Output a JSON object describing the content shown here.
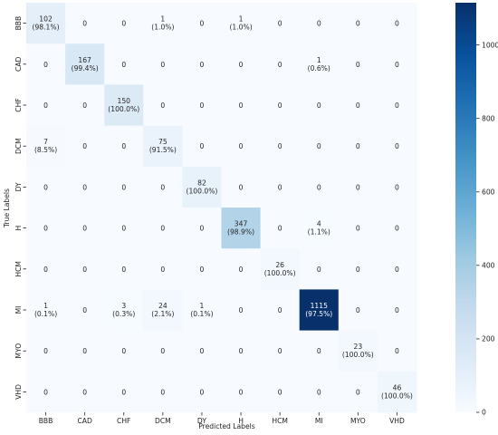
{
  "chart_data": {
    "type": "heatmap",
    "xlabel": "Predicted Labels",
    "ylabel": "True Labels",
    "x_categories": [
      "BBB",
      "CAD",
      "CHF",
      "DCM",
      "DY",
      "H",
      "HCM",
      "MI",
      "MYO",
      "VHD"
    ],
    "y_categories": [
      "BBB",
      "CAD",
      "CHF",
      "DCM",
      "DY",
      "H",
      "HCM",
      "MI",
      "MYO",
      "VHD"
    ],
    "cells": [
      [
        {
          "v": 102,
          "p": "(98.1%)"
        },
        {
          "v": 0
        },
        {
          "v": 0
        },
        {
          "v": 1,
          "p": "(1.0%)"
        },
        {
          "v": 0
        },
        {
          "v": 1,
          "p": "(1.0%)"
        },
        {
          "v": 0
        },
        {
          "v": 0
        },
        {
          "v": 0
        },
        {
          "v": 0
        }
      ],
      [
        {
          "v": 0
        },
        {
          "v": 167,
          "p": "(99.4%)"
        },
        {
          "v": 0
        },
        {
          "v": 0
        },
        {
          "v": 0
        },
        {
          "v": 0
        },
        {
          "v": 0
        },
        {
          "v": 1,
          "p": "(0.6%)"
        },
        {
          "v": 0
        },
        {
          "v": 0
        }
      ],
      [
        {
          "v": 0
        },
        {
          "v": 0
        },
        {
          "v": 150,
          "p": "(100.0%)"
        },
        {
          "v": 0
        },
        {
          "v": 0
        },
        {
          "v": 0
        },
        {
          "v": 0
        },
        {
          "v": 0
        },
        {
          "v": 0
        },
        {
          "v": 0
        }
      ],
      [
        {
          "v": 7,
          "p": "(8.5%)"
        },
        {
          "v": 0
        },
        {
          "v": 0
        },
        {
          "v": 75,
          "p": "(91.5%)"
        },
        {
          "v": 0
        },
        {
          "v": 0
        },
        {
          "v": 0
        },
        {
          "v": 0
        },
        {
          "v": 0
        },
        {
          "v": 0
        }
      ],
      [
        {
          "v": 0
        },
        {
          "v": 0
        },
        {
          "v": 0
        },
        {
          "v": 0
        },
        {
          "v": 82,
          "p": "(100.0%)"
        },
        {
          "v": 0
        },
        {
          "v": 0
        },
        {
          "v": 0
        },
        {
          "v": 0
        },
        {
          "v": 0
        }
      ],
      [
        {
          "v": 0
        },
        {
          "v": 0
        },
        {
          "v": 0
        },
        {
          "v": 0
        },
        {
          "v": 0
        },
        {
          "v": 347,
          "p": "(98.9%)"
        },
        {
          "v": 0
        },
        {
          "v": 4,
          "p": "(1.1%)"
        },
        {
          "v": 0
        },
        {
          "v": 0
        }
      ],
      [
        {
          "v": 0
        },
        {
          "v": 0
        },
        {
          "v": 0
        },
        {
          "v": 0
        },
        {
          "v": 0
        },
        {
          "v": 0
        },
        {
          "v": 26,
          "p": "(100.0%)"
        },
        {
          "v": 0
        },
        {
          "v": 0
        },
        {
          "v": 0
        }
      ],
      [
        {
          "v": 1,
          "p": "(0.1%)"
        },
        {
          "v": 0
        },
        {
          "v": 3,
          "p": "(0.3%)"
        },
        {
          "v": 24,
          "p": "(2.1%)"
        },
        {
          "v": 1,
          "p": "(0.1%)"
        },
        {
          "v": 0
        },
        {
          "v": 0
        },
        {
          "v": 1115,
          "p": "(97.5%)"
        },
        {
          "v": 0
        },
        {
          "v": 0
        }
      ],
      [
        {
          "v": 0
        },
        {
          "v": 0
        },
        {
          "v": 0
        },
        {
          "v": 0
        },
        {
          "v": 0
        },
        {
          "v": 0
        },
        {
          "v": 0
        },
        {
          "v": 0
        },
        {
          "v": 23,
          "p": "(100.0%)"
        },
        {
          "v": 0
        }
      ],
      [
        {
          "v": 0
        },
        {
          "v": 0
        },
        {
          "v": 0
        },
        {
          "v": 0
        },
        {
          "v": 0
        },
        {
          "v": 0
        },
        {
          "v": 0
        },
        {
          "v": 0
        },
        {
          "v": 0
        },
        {
          "v": 46,
          "p": "(100.0%)"
        }
      ]
    ],
    "colorbar": {
      "colormap": "Blues",
      "vmin": 0,
      "vmax": 1115,
      "ticks": [
        "0",
        "200",
        "400",
        "600",
        "800",
        "1000"
      ]
    },
    "grid": false
  }
}
